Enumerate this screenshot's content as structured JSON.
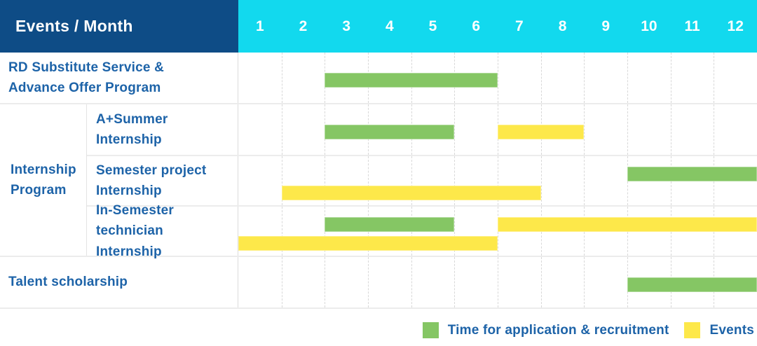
{
  "header": {
    "title": "Events / Month",
    "months": [
      "1",
      "2",
      "3",
      "4",
      "5",
      "6",
      "7",
      "8",
      "9",
      "10",
      "11",
      "12"
    ]
  },
  "colors": {
    "header_bg": "#0e4c86",
    "months_bg": "#12d9ee",
    "application_bar": "#85c664",
    "event_bar": "#fde84a",
    "label_text": "#1d63a8"
  },
  "rows": [
    {
      "id": "rd-substitute",
      "label": "RD Substitute Service &\nAdvance Offer Program",
      "bars": [
        {
          "type": "application",
          "start": 3,
          "end": 6,
          "line": "mid"
        }
      ]
    },
    {
      "id": "a-plus-summer",
      "label": "A+Summer\nInternship",
      "bars": [
        {
          "type": "application",
          "start": 3,
          "end": 5,
          "line": "mid"
        },
        {
          "type": "event",
          "start": 7,
          "end": 8,
          "line": "mid"
        }
      ]
    },
    {
      "id": "semester-project",
      "label": "Semester project\nInternship",
      "bars": [
        {
          "type": "application",
          "start": 10,
          "end": 12,
          "line": "top"
        },
        {
          "type": "event",
          "start": 2,
          "end": 7,
          "line": "bottom"
        }
      ]
    },
    {
      "id": "in-semester-technician",
      "label": "In-Semester\ntechnician Internship",
      "bars": [
        {
          "type": "application",
          "start": 3,
          "end": 5,
          "line": "top"
        },
        {
          "type": "event",
          "start": 7,
          "end": 12,
          "line": "top"
        },
        {
          "type": "event",
          "start": 1,
          "end": 6,
          "line": "bottom"
        }
      ]
    },
    {
      "id": "talent-scholarship",
      "label": "Talent scholarship",
      "bars": [
        {
          "type": "application",
          "start": 10,
          "end": 12,
          "line": "mid"
        }
      ]
    }
  ],
  "group": {
    "label": "Internship\nProgram"
  },
  "legend": {
    "items": [
      {
        "type": "application",
        "label": "Time for application & recruitment",
        "color": "#85c664"
      },
      {
        "type": "event",
        "label": "Events",
        "color": "#fde84a"
      }
    ]
  },
  "chart_data": {
    "type": "bar",
    "subtype": "gantt-timeline",
    "title": "Events / Month",
    "x_axis": {
      "label": "Month",
      "ticks": [
        1,
        2,
        3,
        4,
        5,
        6,
        7,
        8,
        9,
        10,
        11,
        12
      ]
    },
    "legend_entries": [
      "Time for application & recruitment",
      "Events"
    ],
    "rows": [
      {
        "category": "RD Substitute Service & Advance Offer Program",
        "group": null,
        "spans": [
          {
            "series": "Time for application & recruitment",
            "start_month": 3,
            "end_month": 6
          }
        ]
      },
      {
        "category": "A+Summer Internship",
        "group": "Internship Program",
        "spans": [
          {
            "series": "Time for application & recruitment",
            "start_month": 3,
            "end_month": 5
          },
          {
            "series": "Events",
            "start_month": 7,
            "end_month": 8
          }
        ]
      },
      {
        "category": "Semester project Internship",
        "group": "Internship Program",
        "spans": [
          {
            "series": "Time for application & recruitment",
            "start_month": 10,
            "end_month": 12
          },
          {
            "series": "Events",
            "start_month": 2,
            "end_month": 7
          }
        ]
      },
      {
        "category": "In-Semester technician Internship",
        "group": "Internship Program",
        "spans": [
          {
            "series": "Time for application & recruitment",
            "start_month": 3,
            "end_month": 5
          },
          {
            "series": "Events",
            "start_month": 7,
            "end_month": 12
          },
          {
            "series": "Events",
            "start_month": 1,
            "end_month": 6
          }
        ]
      },
      {
        "category": "Talent scholarship",
        "group": null,
        "spans": [
          {
            "series": "Time for application & recruitment",
            "start_month": 10,
            "end_month": 12
          }
        ]
      }
    ]
  }
}
